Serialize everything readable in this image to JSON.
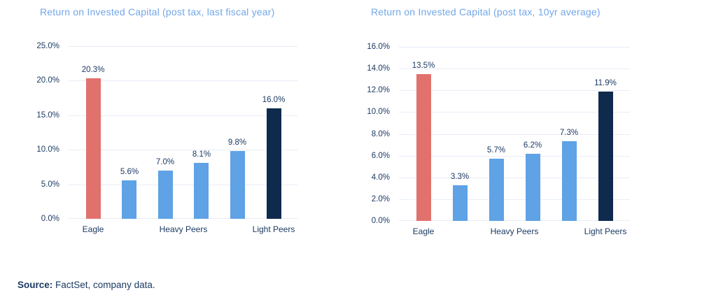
{
  "source_note": {
    "label": "Source:",
    "text": " FactSet, company data."
  },
  "colors": {
    "eagle": "#E1716C",
    "heavy_peer": "#5FA2E5",
    "light_peers": "#0E2A4D",
    "gridline": "#E8EDF7",
    "title_text": "#72A7E9",
    "axis_text": "#1C3A63"
  },
  "chart_data": [
    {
      "type": "bar",
      "title": "Return on Invested Capital (post tax, last fiscal year)",
      "xlabel": "",
      "ylabel": "",
      "ylim": [
        0,
        25
      ],
      "yticks": [
        0,
        5,
        10,
        15,
        20,
        25
      ],
      "ytick_labels": [
        "0.0%",
        "5.0%",
        "10.0%",
        "15.0%",
        "20.0%",
        "25.0%"
      ],
      "grid": true,
      "legend": "none",
      "bars": [
        {
          "category": "Eagle",
          "value": 20.3,
          "label": "20.3%",
          "color_key": "eagle"
        },
        {
          "category": "Heavy Peers",
          "value": 5.6,
          "label": "5.6%",
          "color_key": "heavy_peer"
        },
        {
          "category": "Heavy Peers",
          "value": 7.0,
          "label": "7.0%",
          "color_key": "heavy_peer"
        },
        {
          "category": "Heavy Peers",
          "value": 8.1,
          "label": "8.1%",
          "color_key": "heavy_peer"
        },
        {
          "category": "Heavy Peers",
          "value": 9.8,
          "label": "9.8%",
          "color_key": "heavy_peer"
        },
        {
          "category": "Light Peers",
          "value": 16.0,
          "label": "16.0%",
          "color_key": "light_peers"
        }
      ],
      "x_axis_labels": [
        {
          "text": "Eagle",
          "at_bar": 0
        },
        {
          "text": "Heavy Peers",
          "at_bar": 2.5
        },
        {
          "text": "Light Peers",
          "at_bar": 5
        }
      ]
    },
    {
      "type": "bar",
      "title": "Return on Invested Capital (post tax, 10yr average)",
      "xlabel": "",
      "ylabel": "",
      "ylim": [
        0,
        16
      ],
      "yticks": [
        0,
        2,
        4,
        6,
        8,
        10,
        12,
        14,
        16
      ],
      "ytick_labels": [
        "0.0%",
        "2.0%",
        "4.0%",
        "6.0%",
        "8.0%",
        "10.0%",
        "12.0%",
        "14.0%",
        "16.0%"
      ],
      "grid": true,
      "legend": "none",
      "bars": [
        {
          "category": "Eagle",
          "value": 13.5,
          "label": "13.5%",
          "color_key": "eagle"
        },
        {
          "category": "Heavy Peers",
          "value": 3.3,
          "label": "3.3%",
          "color_key": "heavy_peer"
        },
        {
          "category": "Heavy Peers",
          "value": 5.7,
          "label": "5.7%",
          "color_key": "heavy_peer"
        },
        {
          "category": "Heavy Peers",
          "value": 6.2,
          "label": "6.2%",
          "color_key": "heavy_peer"
        },
        {
          "category": "Heavy Peers",
          "value": 7.3,
          "label": "7.3%",
          "color_key": "heavy_peer"
        },
        {
          "category": "Light Peers",
          "value": 11.9,
          "label": "11.9%",
          "color_key": "light_peers"
        }
      ],
      "x_axis_labels": [
        {
          "text": "Eagle",
          "at_bar": 0
        },
        {
          "text": "Heavy Peers",
          "at_bar": 2.5
        },
        {
          "text": "Light Peers",
          "at_bar": 5
        }
      ]
    }
  ]
}
